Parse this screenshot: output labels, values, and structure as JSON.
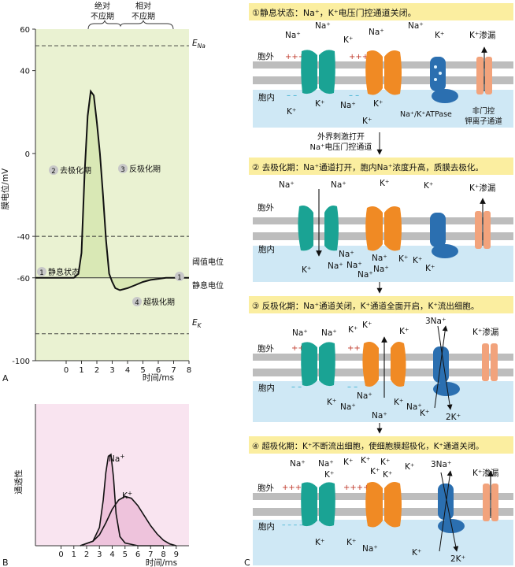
{
  "panels": {
    "a": "A",
    "b": "B",
    "c": "C"
  },
  "chart_data": [
    {
      "type": "line",
      "ylabel": "膜电位/mV",
      "xlabel": "时间/ms",
      "xlim": [
        -2,
        8
      ],
      "ylim": [
        -100,
        60
      ],
      "yticks": [
        "60",
        "40",
        "0",
        "-40",
        "-60",
        "-100"
      ],
      "xticks": [
        "0",
        "1",
        "2",
        "3",
        "4",
        "5",
        "6",
        "7",
        "8"
      ],
      "refractory": {
        "absolute": "绝对不应期",
        "relative": "相对不应期",
        "abs_line1": "绝对",
        "abs_line2": "不应期",
        "rel_line1": "相对",
        "rel_line2": "不应期"
      },
      "lines": {
        "e_na": "E",
        "e_na_sub": "Na",
        "e_k": "E",
        "e_k_sub": "K",
        "threshold": "阈值电位",
        "resting": "静息电位"
      },
      "e_na_value": 52,
      "e_k_value": -87,
      "threshold_value": -40,
      "resting_value": -60,
      "phase_labels": {
        "p1_num": "1",
        "p1": "静息状态",
        "p2_num": "2",
        "p2": "去极化期",
        "p3_num": "3",
        "p3": "反极化期",
        "p4_num": "4",
        "p4": "超极化期",
        "p1b_num": "1"
      },
      "curve": {
        "x": [
          -2,
          0.5,
          0.8,
          1.0,
          1.2,
          1.4,
          1.6,
          1.8,
          2.0,
          2.2,
          2.4,
          2.6,
          2.8,
          3.0,
          3.2,
          3.5,
          4.0,
          4.5,
          5.0,
          5.5,
          6.0,
          6.5,
          7.0,
          8.0
        ],
        "y": [
          -60,
          -60,
          -58,
          -48,
          -10,
          18,
          30,
          28,
          15,
          0,
          -20,
          -42,
          -58,
          -62,
          -65,
          -66,
          -65,
          -63.5,
          -62,
          -61,
          -60.5,
          -60,
          -60,
          -60
        ]
      }
    },
    {
      "type": "line",
      "ylabel": "通透性",
      "xlabel": "时间/ms",
      "xlim": [
        -2,
        10
      ],
      "xticks": [
        "0",
        "1",
        "2",
        "3",
        "4",
        "5",
        "6",
        "7",
        "8",
        "9"
      ],
      "series": [
        {
          "name": "Na",
          "sup": "+",
          "x": [
            1.5,
            2.5,
            3.0,
            3.3,
            3.5,
            3.7,
            3.9,
            4.1,
            4.3,
            4.6,
            5.0,
            6.0,
            8.0
          ],
          "y": [
            0,
            0.05,
            0.2,
            0.5,
            0.8,
            0.98,
            1.0,
            0.75,
            0.35,
            0.1,
            0.03,
            0,
            0
          ]
        },
        {
          "name": "K",
          "sup": "+",
          "x": [
            1.5,
            2.5,
            3.0,
            3.5,
            4.0,
            4.5,
            5.0,
            5.5,
            6.0,
            6.5,
            7.0,
            7.5,
            8.0,
            8.5,
            9.0
          ],
          "y": [
            0,
            0.05,
            0.12,
            0.25,
            0.4,
            0.5,
            0.54,
            0.52,
            0.44,
            0.33,
            0.22,
            0.13,
            0.06,
            0.02,
            0
          ]
        }
      ]
    }
  ],
  "membrane": {
    "stage1": {
      "title": "①静息状态：Na⁺，K⁺电压门控通道关闭。",
      "outside": "胞外",
      "inside": "胞内",
      "plus": "+++",
      "minus": "– –",
      "na": "Na⁺",
      "k": "K⁺",
      "leak": "K⁺渗漏",
      "atpase": "Na⁺/K⁺ATPase",
      "nongated_1": "非门控",
      "nongated_2": "钾离子通道"
    },
    "arrow_note_1": "外界刺激打开",
    "arrow_note_2": "Na⁺电压门控通道",
    "stage2": {
      "title": "② 去极化期：Na⁺通道打开，胞内Na⁺浓度升高，质膜去极化。",
      "outside": "胞外",
      "inside": "胞内",
      "na": "Na⁺",
      "k": "K⁺",
      "leak": "K⁺渗漏"
    },
    "stage3": {
      "title": "③ 反极化期：Na⁺通道关闭，K⁺通道全面开启，K⁺流出细胞。",
      "outside": "胞外",
      "inside": "胞内",
      "plus": "++",
      "minus": "– –",
      "na": "Na⁺",
      "k": "K⁺",
      "na3": "3Na⁺",
      "k2": "2K⁺",
      "leak": "K⁺渗漏"
    },
    "stage4": {
      "title": "④ 超极化期：K⁺不断流出细胞，使细胞膜超极化，K⁺通道关闭。",
      "outside": "胞外",
      "inside": "胞内",
      "plus": "++++",
      "minus": "– – – –",
      "na": "Na⁺",
      "k": "K⁺",
      "na3": "3Na⁺",
      "k2": "2K⁺",
      "leak": "K⁺渗漏"
    }
  },
  "colors": {
    "panelA": "#eaf2d2",
    "panelB": "#f9e4f0",
    "fillA": "#d9e8b5",
    "fillB": "#eec3dc",
    "title_bg": "#fbeea0",
    "bg_in": "#cfe8f5",
    "membrane": "#bdbdbd",
    "teal": "#1aa394",
    "orange": "#f08a24",
    "blue": "#2b6fb0",
    "salmon": "#f2a37c"
  }
}
